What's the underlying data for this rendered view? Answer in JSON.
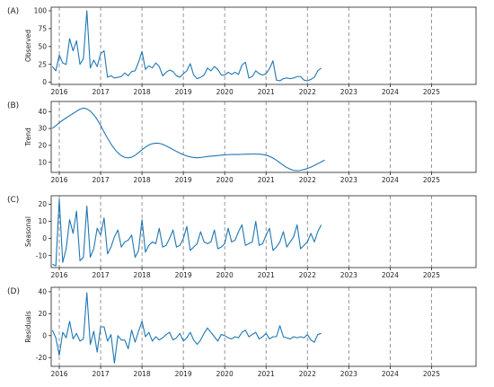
{
  "colors": {
    "line": "#1f77b4",
    "vline": "#8a8a8a"
  },
  "chart_data": {
    "type": "line",
    "x_labels": [
      "2016",
      "2017",
      "2018",
      "2019",
      "2020",
      "2021",
      "2022",
      "2023",
      "2024",
      "2025"
    ],
    "panels": [
      {
        "label": "(A)",
        "ylabel": "Observed",
        "ylim": [
          -3,
          105
        ],
        "yticks": [
          0,
          25,
          50,
          75,
          100
        ],
        "values": [
          22,
          16,
          38,
          27,
          25,
          61,
          44,
          58,
          25,
          33,
          100,
          20,
          31,
          22,
          40,
          44,
          7,
          9,
          6,
          7,
          8,
          13,
          9,
          15,
          16,
          28,
          43,
          18,
          23,
          20,
          27,
          22,
          9,
          14,
          17,
          15,
          9,
          7,
          12,
          16,
          26,
          10,
          5,
          7,
          10,
          20,
          16,
          22,
          18,
          10,
          10,
          14,
          11,
          14,
          11,
          24,
          28,
          6,
          8,
          16,
          12,
          10,
          12,
          19,
          30,
          3,
          2,
          5,
          6,
          5,
          6,
          8,
          8,
          3,
          2,
          4,
          7,
          16,
          20
        ]
      },
      {
        "label": "(B)",
        "ylabel": "Trend",
        "ylim": [
          4,
          46
        ],
        "yticks": [
          10,
          20,
          30,
          40
        ],
        "values": [
          30,
          31.7,
          33.4,
          34.9,
          36.3,
          37.6,
          38.9,
          40.2,
          41.4,
          42.1,
          41.6,
          40.3,
          38.1,
          35.3,
          31.8,
          27.9,
          24.2,
          20.8,
          17.9,
          15.6,
          13.9,
          12.9,
          12.6,
          13,
          14.1,
          15.7,
          17.4,
          19,
          20.2,
          21,
          21.3,
          21.2,
          20.6,
          19.7,
          18.6,
          17.5,
          16.4,
          15.4,
          14.5,
          13.7,
          13.2,
          12.8,
          12.7,
          12.8,
          13.1,
          13.4,
          13.6,
          13.8,
          14,
          14.2,
          14.4,
          14.5,
          14.6,
          14.6,
          14.6,
          14.7,
          14.8,
          14.8,
          14.9,
          14.9,
          14.8,
          14.6,
          14.2,
          13.5,
          12.5,
          11.2,
          9.7,
          8.2,
          6.9,
          5.9,
          5.2,
          5,
          5.2,
          5.7,
          6.3,
          7.1,
          8.1,
          9.2,
          10.2,
          11.3
        ]
      },
      {
        "label": "(C)",
        "ylabel": "Seasonal",
        "ylim": [
          -17,
          25
        ],
        "yticks": [
          -10,
          0,
          10,
          20
        ],
        "values": [
          -15,
          -16,
          23,
          -14,
          -6,
          11,
          3,
          16,
          -13,
          -11,
          19,
          -11,
          -6,
          6,
          2,
          12,
          -9,
          -5,
          1,
          5,
          -5,
          -2,
          -1,
          2,
          -11,
          -7,
          11,
          -8,
          -4,
          -2,
          -3,
          6,
          -5,
          -4,
          0,
          5,
          -5,
          -4,
          0,
          7,
          -7,
          -5,
          -3,
          4,
          -2,
          -3,
          -2,
          5,
          -6,
          -5,
          -3,
          6,
          -2,
          -1,
          4,
          8,
          -4,
          -3,
          -2,
          10,
          -4,
          -3,
          2,
          6,
          -7,
          -5,
          -2,
          4,
          -5,
          -2,
          1,
          8,
          -6,
          -4,
          -2,
          3,
          -2,
          4,
          8
        ]
      },
      {
        "label": "(D)",
        "ylabel": "Residuals",
        "ylim": [
          -28,
          44
        ],
        "yticks": [
          -20,
          0,
          20,
          40
        ],
        "values": [
          5,
          -2,
          -18,
          3,
          -2,
          13,
          -3,
          2,
          -5,
          -3,
          39,
          -8,
          4,
          -15,
          8,
          8,
          -5,
          1,
          -25,
          0,
          -4,
          -4,
          -12,
          5,
          -6,
          4,
          13,
          -1,
          3,
          -5,
          -1,
          -4,
          -2,
          1,
          3,
          -4,
          -2,
          2,
          -5,
          -2,
          3,
          -4,
          -8,
          -4,
          2,
          7,
          3,
          -1,
          -5,
          1,
          0,
          -2,
          -3,
          -1,
          -2,
          3,
          5,
          -1,
          1,
          3,
          -3,
          -1,
          2,
          -3,
          -1,
          -1,
          9,
          -1,
          -2,
          -3,
          -1,
          -2,
          -1,
          -2,
          1,
          -4,
          -6,
          1,
          2
        ]
      }
    ]
  }
}
